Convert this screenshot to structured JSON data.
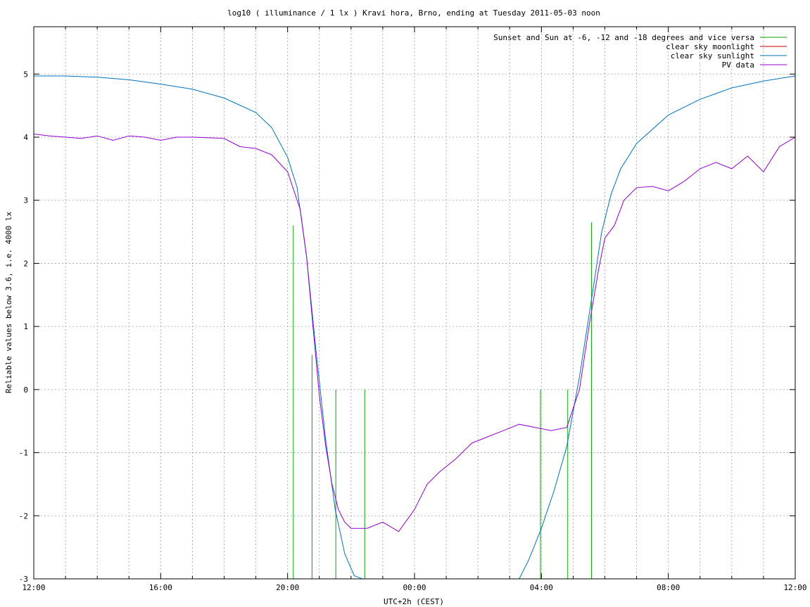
{
  "chart_data": {
    "type": "line",
    "title": "log10 ( illuminance / 1 lx ) Kravi hora, Brno, ending at Tuesday 2011-05-03 noon",
    "xlabel": "UTC+2h (CEST)",
    "ylabel": "Reliable values below 3.6, i.e. 4000 lx",
    "x_unit": "hours since 2011-05-02 12:00 (CEST)",
    "xlim": [
      0,
      24
    ],
    "ylim": [
      -3,
      5.75
    ],
    "x_ticks": [
      {
        "v": 0,
        "label": "12:00"
      },
      {
        "v": 4,
        "label": "16:00"
      },
      {
        "v": 8,
        "label": "20:00"
      },
      {
        "v": 12,
        "label": "00:00"
      },
      {
        "v": 16,
        "label": "04:00"
      },
      {
        "v": 20,
        "label": "08:00"
      },
      {
        "v": 24,
        "label": "12:00"
      }
    ],
    "x_grid": [
      0,
      1,
      2,
      3,
      4,
      5,
      6,
      7,
      8,
      9,
      10,
      11,
      12,
      13,
      14,
      15,
      16,
      17,
      18,
      19,
      20,
      21,
      22,
      23,
      24
    ],
    "y_ticks": [
      {
        "v": -3,
        "label": "-3"
      },
      {
        "v": -2,
        "label": "-2"
      },
      {
        "v": -1,
        "label": "-1"
      },
      {
        "v": 0,
        "label": "0"
      },
      {
        "v": 1,
        "label": "1"
      },
      {
        "v": 2,
        "label": "2"
      },
      {
        "v": 3,
        "label": "3"
      },
      {
        "v": 4,
        "label": "4"
      },
      {
        "v": 5,
        "label": "5"
      }
    ],
    "grid": true,
    "legend_position": "top-right",
    "series": [
      {
        "name": "Sunset and Sun at -6, -12 and -18 degrees and vice versa",
        "color": "#00aa00",
        "kind": "vertical-markers",
        "markers": [
          {
            "x": 8.18,
            "y_top": 2.6
          },
          {
            "x": 8.77,
            "y_top": 0.55
          },
          {
            "x": 9.52,
            "y_top": 0
          },
          {
            "x": 10.43,
            "y_top": 0
          },
          {
            "x": 15.97,
            "y_top": 0
          },
          {
            "x": 16.83,
            "y_top": 0
          },
          {
            "x": 17.58,
            "y_top": 2.65
          }
        ]
      },
      {
        "name": "clear sky moonlight",
        "color": "#cc0000",
        "points": []
      },
      {
        "name": "clear sky sunlight",
        "color": "#0072bd",
        "points": [
          [
            0,
            4.97
          ],
          [
            1,
            4.97
          ],
          [
            2,
            4.95
          ],
          [
            3,
            4.91
          ],
          [
            4,
            4.84
          ],
          [
            5,
            4.76
          ],
          [
            6,
            4.62
          ],
          [
            7,
            4.39
          ],
          [
            7.5,
            4.15
          ],
          [
            8,
            3.68
          ],
          [
            8.3,
            3.2
          ],
          [
            8.6,
            2.1
          ],
          [
            8.9,
            0.6
          ],
          [
            9.2,
            -0.8
          ],
          [
            9.5,
            -1.9
          ],
          [
            9.8,
            -2.6
          ],
          [
            10.1,
            -2.95
          ],
          [
            10.35,
            -3.0
          ]
        ],
        "points2": [
          [
            15.3,
            -3.0
          ],
          [
            15.6,
            -2.7
          ],
          [
            16,
            -2.2
          ],
          [
            16.4,
            -1.6
          ],
          [
            16.8,
            -0.9
          ],
          [
            17.2,
            0.2
          ],
          [
            17.6,
            1.5
          ],
          [
            17.9,
            2.5
          ],
          [
            18.2,
            3.1
          ],
          [
            18.5,
            3.5
          ],
          [
            19,
            3.9
          ],
          [
            20,
            4.35
          ],
          [
            21,
            4.6
          ],
          [
            22,
            4.78
          ],
          [
            23,
            4.89
          ],
          [
            24,
            4.97
          ]
        ]
      },
      {
        "name": "PV data",
        "color": "#9400d3",
        "points": [
          [
            0,
            4.05
          ],
          [
            0.5,
            4.02
          ],
          [
            1,
            4.0
          ],
          [
            1.5,
            3.98
          ],
          [
            2,
            4.02
          ],
          [
            2.5,
            3.95
          ],
          [
            3,
            4.02
          ],
          [
            3.5,
            4.0
          ],
          [
            4,
            3.95
          ],
          [
            4.5,
            4.0
          ],
          [
            5,
            4.0
          ],
          [
            5.5,
            3.99
          ],
          [
            6,
            3.98
          ],
          [
            6.5,
            3.85
          ],
          [
            7,
            3.82
          ],
          [
            7.5,
            3.72
          ],
          [
            8,
            3.45
          ],
          [
            8.2,
            3.15
          ],
          [
            8.4,
            2.85
          ],
          [
            8.6,
            2.1
          ],
          [
            8.8,
            1.0
          ],
          [
            9.0,
            -0.1
          ],
          [
            9.2,
            -0.9
          ],
          [
            9.4,
            -1.5
          ],
          [
            9.6,
            -1.9
          ],
          [
            9.8,
            -2.1
          ],
          [
            10,
            -2.2
          ],
          [
            10.5,
            -2.2
          ],
          [
            11,
            -2.1
          ],
          [
            11.5,
            -2.25
          ],
          [
            12,
            -1.9
          ],
          [
            12.4,
            -1.5
          ],
          [
            12.8,
            -1.3
          ],
          [
            13.3,
            -1.1
          ],
          [
            13.8,
            -0.85
          ],
          [
            14.3,
            -0.75
          ],
          [
            14.8,
            -0.65
          ],
          [
            15.3,
            -0.55
          ],
          [
            15.8,
            -0.6
          ],
          [
            16.3,
            -0.65
          ],
          [
            16.8,
            -0.6
          ],
          [
            17.2,
            0.0
          ],
          [
            17.5,
            1.0
          ],
          [
            17.8,
            1.9
          ],
          [
            18.0,
            2.4
          ],
          [
            18.3,
            2.6
          ],
          [
            18.6,
            3.0
          ],
          [
            19,
            3.2
          ],
          [
            19.5,
            3.22
          ],
          [
            20,
            3.15
          ],
          [
            20.5,
            3.3
          ],
          [
            21,
            3.5
          ],
          [
            21.5,
            3.6
          ],
          [
            22,
            3.5
          ],
          [
            22.5,
            3.7
          ],
          [
            23,
            3.45
          ],
          [
            23.5,
            3.85
          ],
          [
            24,
            4.0
          ]
        ]
      }
    ]
  }
}
